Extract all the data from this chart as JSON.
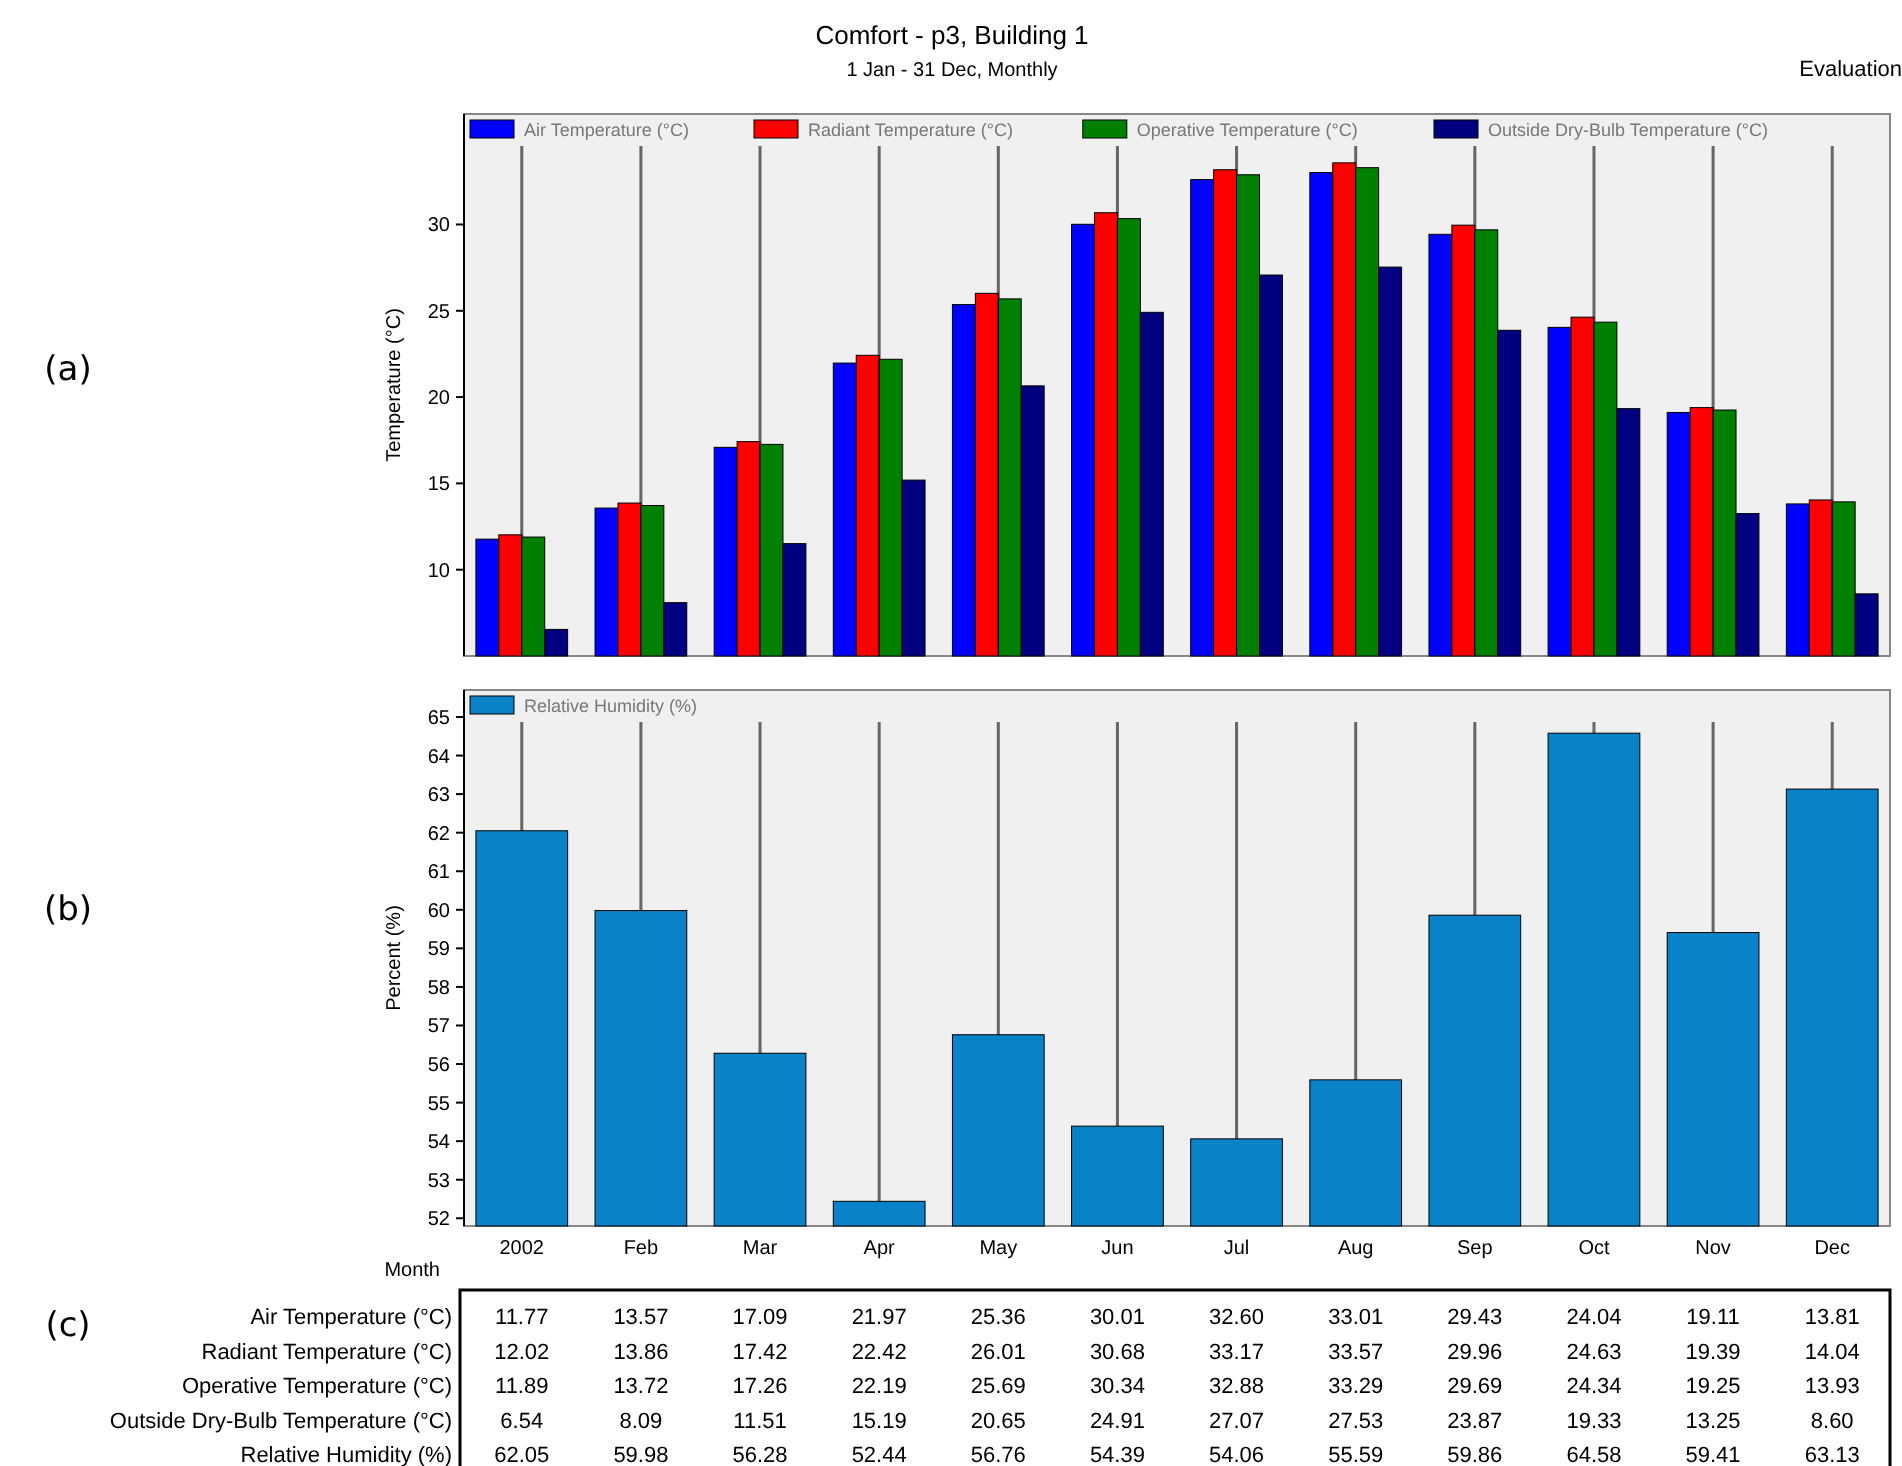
{
  "chart_data": [
    {
      "type": "bar",
      "title": "Comfort - p3, Building 1",
      "subtitle": "1 Jan - 31 Dec, Monthly",
      "ylabel": "Temperature (°C)",
      "categories": [
        null,
        null,
        null,
        null,
        null,
        null,
        null,
        null,
        null,
        null,
        null,
        null
      ],
      "series": [
        {
          "name": "Air Temperature (°C)",
          "color": "#0000ff",
          "values": [
            11.77,
            13.57,
            17.09,
            21.97,
            25.36,
            30.01,
            32.6,
            33.01,
            29.43,
            24.04,
            19.11,
            13.81
          ],
          "value_labels": [
            "11.77",
            "13.57",
            "17.09",
            "21.97",
            "25.36",
            "30.01",
            "32.60",
            "33.01",
            "29.43",
            "24.04",
            "19.11",
            "13.81"
          ]
        },
        {
          "name": "Radiant Temperature (°C)",
          "color": "#ff0000",
          "values": [
            12.02,
            13.86,
            17.42,
            22.42,
            26.01,
            30.68,
            33.17,
            33.57,
            29.96,
            24.63,
            19.39,
            14.04
          ],
          "value_labels": [
            "12.02",
            "13.86",
            "17.42",
            "22.42",
            "26.01",
            "30.68",
            "33.17",
            "33.57",
            "29.96",
            "24.63",
            "19.39",
            "14.04"
          ]
        },
        {
          "name": "Operative Temperature (°C)",
          "color": "#008000",
          "values": [
            11.89,
            13.72,
            17.26,
            22.19,
            25.69,
            30.34,
            32.88,
            33.29,
            29.69,
            24.34,
            19.25,
            13.93
          ],
          "value_labels": [
            "11.89",
            "13.72",
            "17.26",
            "22.19",
            "25.69",
            "30.34",
            "32.88",
            "33.29",
            "29.69",
            "24.34",
            "19.25",
            "13.93"
          ]
        },
        {
          "name": "Outside Dry-Bulb Temperature (°C)",
          "color": "#000080",
          "values": [
            6.54,
            8.09,
            11.51,
            15.19,
            20.65,
            24.91,
            27.07,
            27.53,
            23.87,
            19.33,
            13.25,
            8.6
          ],
          "value_labels": [
            "6.54",
            "8.09",
            "11.51",
            "15.19",
            "20.65",
            "24.91",
            "27.07",
            "27.53",
            "23.87",
            "19.33",
            "13.25",
            "8.60"
          ]
        }
      ],
      "ylim": [
        5,
        36.4
      ],
      "yticks": [
        10,
        15,
        20,
        25,
        30
      ],
      "grid": "x",
      "legend": "top left",
      "tick_labels": "y",
      "annotations": [
        "Evaluation",
        "(a)"
      ]
    },
    {
      "type": "bar",
      "xlabel": "Month",
      "ylabel": "Percent (%)",
      "categories": [
        "2002",
        "Feb",
        "Mar",
        "Apr",
        "May",
        "Jun",
        "Jul",
        "Aug",
        "Sep",
        "Oct",
        "Nov",
        "Dec"
      ],
      "series": [
        {
          "name": "Relative Humidity (%)",
          "color": "#0a82c8",
          "values": [
            62.05,
            59.98,
            56.28,
            52.44,
            56.76,
            54.39,
            54.06,
            55.59,
            59.86,
            64.58,
            59.41,
            63.13
          ],
          "value_labels": [
            "62.05",
            "59.98",
            "56.28",
            "52.44",
            "56.76",
            "54.39",
            "54.06",
            "55.59",
            "59.86",
            "64.58",
            "59.41",
            "63.13"
          ]
        }
      ],
      "ylim": [
        51.8,
        65.7
      ],
      "yticks": [
        52,
        53,
        54,
        55,
        56,
        57,
        58,
        59,
        60,
        61,
        62,
        63,
        64,
        65
      ],
      "grid": "x",
      "legend": "top left",
      "annotations": [
        "(b)",
        "(c)"
      ]
    }
  ]
}
